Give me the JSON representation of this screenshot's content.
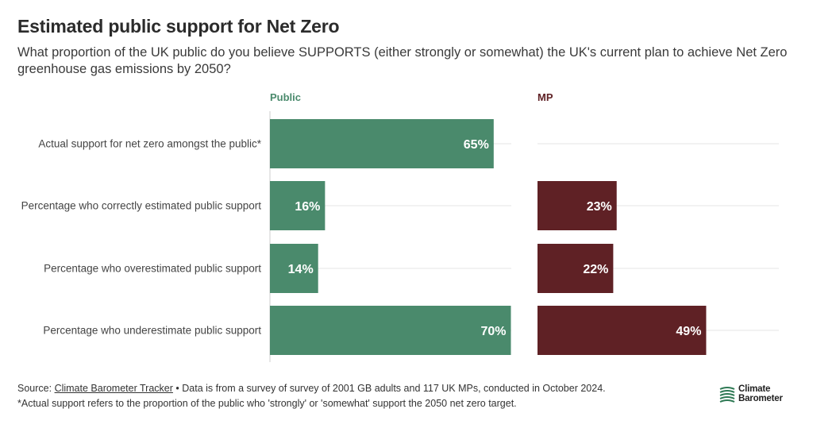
{
  "title": "Estimated public support for Net Zero",
  "subtitle": "What proportion of the UK public do you believe SUPPORTS (either strongly or somewhat) the UK's current plan to achieve Net Zero greenhouse gas emissions by 2050?",
  "colors": {
    "public": "#4a8a6c",
    "mp": "#5f2125",
    "gridline": "#e6e6e6"
  },
  "chart_data": {
    "type": "bar",
    "orientation": "horizontal",
    "categories": [
      "Actual support for net zero amongst the public*",
      "Percentage who correctly estimated public support",
      "Percentage who overestimated public support",
      "Percentage who underestimate public support"
    ],
    "series": [
      {
        "name": "Public",
        "values": [
          65,
          16,
          14,
          70
        ],
        "labels": [
          "65%",
          "16%",
          "14%",
          "70%"
        ]
      },
      {
        "name": "MP",
        "values": [
          null,
          23,
          22,
          49
        ],
        "labels": [
          "",
          "23%",
          "22%",
          "49%"
        ]
      }
    ],
    "xlim": [
      0,
      70
    ],
    "grid": true
  },
  "footer": {
    "source_prefix": "Source: ",
    "source_link": "Climate Barometer Tracker",
    "source_rest": " • Data is from a survey of survey of 2001 GB adults and 117 UK MPs, conducted in October 2024.",
    "note": "*Actual support refers to the proportion of the public who 'strongly' or 'somewhat' support the 2050 net zero target."
  },
  "logo": {
    "line1": "Climate",
    "line2": "Barometer",
    "icon": "climate-barometer-logo-icon"
  }
}
